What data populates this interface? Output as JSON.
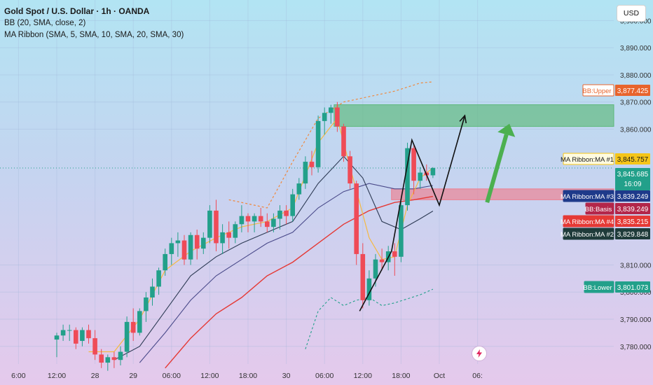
{
  "legend": {
    "title": "Gold Spot / U.S. Dollar · 1h · OANDA",
    "bb": "BB (20, SMA, close, 2)",
    "ma_ribbon": "MA Ribbon (SMA, 5, SMA, 10, SMA, 20, SMA, 30)"
  },
  "currency_button": "USD",
  "icons": {
    "flash": "flash-icon"
  },
  "colors": {
    "up": "#22a08a",
    "down": "#ef4b57",
    "bb_band": "#f0883e",
    "ma1": "#f5b942",
    "ma2": "#2e3b55",
    "ma3": "#4a4a8a",
    "ma4": "#e53935",
    "target_zone": "#5cb87a",
    "support_zone": "#ee7e8e",
    "arrow": "#4cb050"
  },
  "chart_data": {
    "type": "candlestick",
    "price_axis": {
      "ticks": [
        3900,
        3890,
        3880,
        3870,
        3860,
        3810,
        3800,
        3790,
        3780
      ],
      "tick_labels": [
        "3,900.000",
        "3,890.000",
        "3,880.000",
        "3,870.000",
        "3,860.000",
        "3,810.000",
        "3,800.000",
        "3,790.000",
        "3,780.000"
      ],
      "range": [
        3773.5,
        3905
      ]
    },
    "time_axis": {
      "labels": [
        "6:00",
        "12:00",
        "28",
        "29",
        "06:00",
        "12:00",
        "18:00",
        "30",
        "06:00",
        "12:00",
        "18:00",
        "Oct",
        "06:"
      ],
      "label_bar_index": [
        -6,
        0,
        6,
        12,
        18,
        24,
        30,
        36,
        42,
        48,
        54,
        60,
        66
      ]
    },
    "first_bar_time": "27 09:00",
    "bar_interval": "1h",
    "candles": [
      [
        3782.5,
        3785,
        3776,
        3784
      ],
      [
        3784,
        3788,
        3782,
        3786
      ],
      [
        3786,
        3788,
        3782,
        3786
      ],
      [
        3786,
        3787,
        3779,
        3781
      ],
      [
        3782,
        3787,
        3780,
        3786
      ],
      [
        3786,
        3788,
        3781,
        3783
      ],
      [
        3783,
        3786,
        3775,
        3777
      ],
      [
        3777,
        3779,
        3772,
        3774
      ],
      [
        3774,
        3777,
        3771,
        3776
      ],
      [
        3776,
        3778,
        3772,
        3775
      ],
      [
        3775,
        3780,
        3773,
        3778
      ],
      [
        3778,
        3791,
        3776,
        3789
      ],
      [
        3789,
        3794,
        3782,
        3785
      ],
      [
        3785,
        3794,
        3784,
        3793
      ],
      [
        3793,
        3800,
        3789,
        3798
      ],
      [
        3798,
        3805,
        3795,
        3802
      ],
      [
        3802,
        3809,
        3799,
        3808
      ],
      [
        3808,
        3816,
        3806,
        3814
      ],
      [
        3814,
        3820,
        3810,
        3818
      ],
      [
        3818,
        3822,
        3813,
        3819
      ],
      [
        3819,
        3821,
        3810,
        3812
      ],
      [
        3812,
        3822,
        3810,
        3821
      ],
      [
        3821,
        3823,
        3812,
        3816
      ],
      [
        3816,
        3822,
        3814,
        3820
      ],
      [
        3820,
        3832,
        3818,
        3830
      ],
      [
        3830,
        3834,
        3815,
        3818
      ],
      [
        3818,
        3825,
        3814,
        3822
      ],
      [
        3822,
        3826,
        3816,
        3820
      ],
      [
        3820,
        3826,
        3818,
        3825
      ],
      [
        3825,
        3832,
        3822,
        3828
      ],
      [
        3828,
        3829,
        3822,
        3826
      ],
      [
        3826,
        3829,
        3822,
        3828
      ],
      [
        3828,
        3831,
        3824,
        3826
      ],
      [
        3826,
        3829,
        3822,
        3824
      ],
      [
        3824,
        3829,
        3822,
        3827
      ],
      [
        3827,
        3832,
        3823,
        3830
      ],
      [
        3830,
        3832,
        3825,
        3828
      ],
      [
        3828,
        3838,
        3826,
        3836
      ],
      [
        3836,
        3842,
        3834,
        3840
      ],
      [
        3840,
        3850,
        3838,
        3848
      ],
      [
        3848,
        3852,
        3843,
        3846
      ],
      [
        3846,
        3865,
        3844,
        3863
      ],
      [
        3863,
        3868,
        3858,
        3866
      ],
      [
        3866,
        3869,
        3862,
        3868
      ],
      [
        3868,
        3870,
        3859,
        3861
      ],
      [
        3861,
        3862,
        3848,
        3850
      ],
      [
        3850,
        3852,
        3838,
        3840
      ],
      [
        3840,
        3841,
        3810,
        3814
      ],
      [
        3814,
        3818,
        3794,
        3797
      ],
      [
        3797,
        3808,
        3795,
        3805
      ],
      [
        3805,
        3814,
        3802,
        3812
      ],
      [
        3812,
        3816,
        3808,
        3811
      ],
      [
        3811,
        3817,
        3808,
        3815
      ],
      [
        3815,
        3818,
        3806,
        3813
      ],
      [
        3813,
        3834,
        3811,
        3832
      ],
      [
        3832,
        3855,
        3830,
        3853
      ],
      [
        3853,
        3854,
        3836,
        3841
      ],
      [
        3841,
        3846,
        3838,
        3844
      ],
      [
        3844,
        3847,
        3841,
        3843
      ],
      [
        3843,
        3846,
        3842,
        3845.685
      ]
    ],
    "overlays": {
      "bb_upper": [
        [
          27,
          3834
        ],
        [
          33,
          3831
        ],
        [
          37,
          3848
        ],
        [
          41,
          3864
        ],
        [
          45,
          3870
        ],
        [
          49,
          3872
        ],
        [
          53,
          3874
        ],
        [
          57,
          3877
        ],
        [
          59,
          3877.425
        ]
      ],
      "bb_lower": [
        [
          39,
          3779
        ],
        [
          41,
          3793
        ],
        [
          43,
          3798
        ],
        [
          45,
          3795
        ],
        [
          47,
          3797
        ],
        [
          49,
          3798
        ],
        [
          51,
          3795
        ],
        [
          53,
          3796
        ],
        [
          57,
          3799
        ],
        [
          59,
          3801.073
        ]
      ],
      "ma1": [
        [
          5,
          3778
        ],
        [
          9,
          3778
        ],
        [
          13,
          3790
        ],
        [
          17,
          3808
        ],
        [
          21,
          3815
        ],
        [
          25,
          3820
        ],
        [
          29,
          3824
        ],
        [
          33,
          3826
        ],
        [
          37,
          3831
        ],
        [
          41,
          3855
        ],
        [
          44,
          3864
        ],
        [
          46,
          3846
        ],
        [
          49,
          3820
        ],
        [
          51,
          3812
        ],
        [
          53,
          3813
        ],
        [
          55,
          3832
        ],
        [
          57,
          3842
        ],
        [
          59,
          3845.757
        ]
      ],
      "ma2": [
        [
          9,
          3775
        ],
        [
          13,
          3780
        ],
        [
          17,
          3793
        ],
        [
          21,
          3806
        ],
        [
          25,
          3813
        ],
        [
          29,
          3818
        ],
        [
          33,
          3822
        ],
        [
          37,
          3826
        ],
        [
          41,
          3840
        ],
        [
          45,
          3850
        ],
        [
          48,
          3842
        ],
        [
          51,
          3826
        ],
        [
          54,
          3823
        ],
        [
          57,
          3827
        ],
        [
          59,
          3829.848
        ]
      ],
      "ma3": [
        [
          13,
          3774
        ],
        [
          17,
          3785
        ],
        [
          21,
          3797
        ],
        [
          25,
          3806
        ],
        [
          29,
          3812
        ],
        [
          33,
          3818
        ],
        [
          37,
          3822
        ],
        [
          41,
          3831
        ],
        [
          45,
          3837
        ],
        [
          49,
          3840
        ],
        [
          53,
          3838
        ],
        [
          56,
          3838
        ],
        [
          59,
          3839.249
        ]
      ],
      "ma4": [
        [
          17,
          3772
        ],
        [
          21,
          3783
        ],
        [
          25,
          3792
        ],
        [
          29,
          3798
        ],
        [
          33,
          3806
        ],
        [
          37,
          3811
        ],
        [
          41,
          3818
        ],
        [
          45,
          3825
        ],
        [
          49,
          3830
        ],
        [
          53,
          3833
        ],
        [
          56,
          3834
        ],
        [
          59,
          3835.215
        ]
      ]
    },
    "current_price_line": 3845.685,
    "zones": [
      {
        "name": "target",
        "from_bar": 44,
        "price_top": 3869,
        "price_bottom": 3861
      },
      {
        "name": "support",
        "from_bar": 53,
        "price_top": 3838,
        "price_bottom": 3834
      }
    ],
    "projection_path": [
      [
        47.5,
        3793
      ],
      [
        52.5,
        3815
      ],
      [
        55.7,
        3856
      ],
      [
        60,
        3832
      ],
      [
        64,
        3865
      ]
    ],
    "projection_arrow": {
      "from": [
        67.5,
        3833
      ],
      "to": [
        71,
        3862
      ]
    },
    "price_labels": [
      {
        "name": "BB:Upper",
        "value": "3,877.425",
        "price": 3877.425,
        "color": "#e8642c",
        "text_color": "#e8642c",
        "value_color": "#ffffff",
        "fill": true
      },
      {
        "name": "MA Ribbon:MA #1",
        "value": "3,845.757",
        "price": 3845.757,
        "color": "#f5c518",
        "text_color": "#1a1a1a",
        "value_color": "#1a1a1a",
        "fill": true
      },
      {
        "name": "",
        "value": "3,845.685",
        "price": 3845.685,
        "color": "#22a08a",
        "text_color": "#ffffff",
        "value_color": "#ffffff",
        "fill": true,
        "sub": "16:09"
      },
      {
        "name": "MA Ribbon:MA #3",
        "value": "3,839.249",
        "price": 3839.249,
        "color": "#1e3a8a",
        "text_color": "#ffffff",
        "value_color": "#ffffff",
        "fill": true
      },
      {
        "name": "BB:Basis",
        "value": "3,839.249",
        "price": 3839.249,
        "color": "#b3264a",
        "text_color": "#ffffff",
        "value_color": "#ffffff",
        "fill": true
      },
      {
        "name": "MA Ribbon:MA #4",
        "value": "3,835.215",
        "price": 3835.215,
        "color": "#e53935",
        "text_color": "#ffffff",
        "value_color": "#ffffff",
        "fill": true
      },
      {
        "name": "MA Ribbon:MA #2",
        "value": "3,829.848",
        "price": 3829.848,
        "color": "#1f3b3a",
        "text_color": "#ffffff",
        "value_color": "#ffffff",
        "fill": true
      },
      {
        "name": "BB:Lower",
        "value": "3,801.073",
        "price": 3801.073,
        "color": "#22a08a",
        "text_color": "#ffffff",
        "value_color": "#ffffff",
        "fill": true
      }
    ]
  }
}
